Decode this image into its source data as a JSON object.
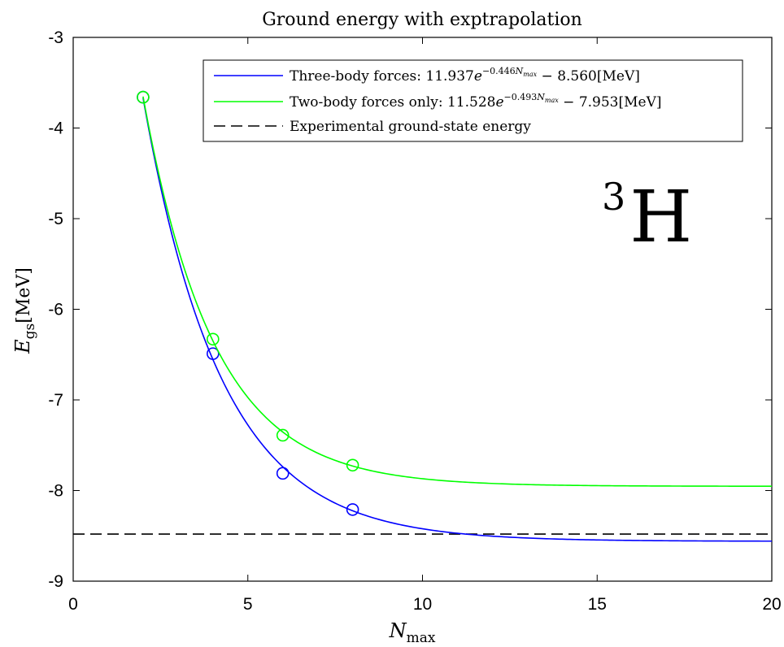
{
  "chart_data": {
    "type": "line",
    "title": "Ground energy with exptrapolation",
    "xlabel": {
      "main": "N",
      "sub": "max"
    },
    "ylabel": {
      "main": "E",
      "sub": "gs",
      "unit": "[MeV]"
    },
    "xlim": [
      0,
      20
    ],
    "ylim": [
      -9,
      -3
    ],
    "x_ticks": [
      0,
      5,
      10,
      15,
      20
    ],
    "x_tick_labels": [
      "0",
      "5",
      "10",
      "15",
      "20"
    ],
    "y_ticks": [
      -3,
      -4,
      -5,
      -6,
      -7,
      -8,
      -9
    ],
    "y_tick_labels": [
      "-3",
      "-4",
      "-5",
      "-6",
      "-7",
      "-8",
      "-9"
    ],
    "grid": false,
    "legend_position": "top-right",
    "annotation": {
      "mass_number": "3",
      "element": "H"
    },
    "series": [
      {
        "key": "three_body",
        "legend": {
          "prefix": "Three-body forces: 11.937",
          "base": "e",
          "exp": "−0.446",
          "exp_var": "N",
          "exp_var_sub": "max",
          "suffix": " − 8.560[MeV]"
        },
        "color": "#0000ff",
        "fit": {
          "a": 11.937,
          "b": 0.446,
          "c": -8.56,
          "x_start": 2,
          "x_end": 20
        },
        "points": {
          "x": [
            2,
            4,
            6,
            8
          ],
          "y": [
            -3.66,
            -6.49,
            -7.81,
            -8.21
          ]
        }
      },
      {
        "key": "two_body",
        "legend": {
          "prefix": "Two-body forces only: 11.528",
          "base": "e",
          "exp": "−0.493",
          "exp_var": "N",
          "exp_var_sub": "max",
          "suffix": " − 7.953[MeV]"
        },
        "color": "#00ff00",
        "fit": {
          "a": 11.528,
          "b": 0.493,
          "c": -7.953,
          "x_start": 2,
          "x_end": 20
        },
        "points": {
          "x": [
            2,
            4,
            6,
            8
          ],
          "y": [
            -3.66,
            -6.33,
            -7.39,
            -7.72
          ]
        }
      }
    ],
    "reference_line": {
      "legend": "Experimental ground-state energy",
      "y": -8.48,
      "color": "#000000",
      "style": "dashed"
    }
  }
}
